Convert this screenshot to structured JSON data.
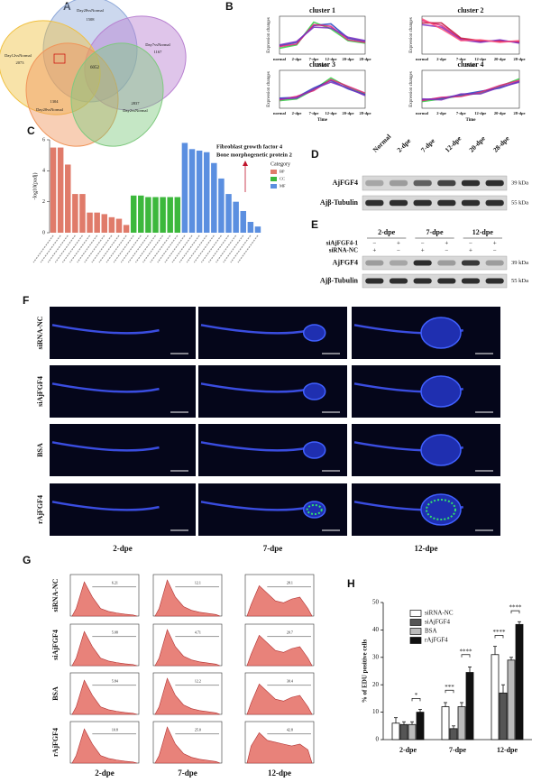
{
  "panel_labels": [
    "A",
    "B",
    "C",
    "D",
    "E",
    "F",
    "G",
    "H"
  ],
  "venn": {
    "sets": [
      {
        "name": "Day28vsNormal",
        "count": 1508
      },
      {
        "name": "Day7vsNormal",
        "count": 1167
      },
      {
        "name": "Day12vsNormal",
        "count": 2073
      },
      {
        "name": "Day20vsNormal",
        "count": 1304
      },
      {
        "name": "Day2vsNormal",
        "count": 2837
      }
    ],
    "center": 6052
  },
  "chart_data": [
    {
      "type": "line",
      "title": "cluster 1",
      "ylabel": "Expression changes",
      "xlabel": "Time",
      "categories": [
        "normal",
        "2-dpe",
        "7-dpe",
        "12-dpe",
        "20-dpe",
        "28-dpe"
      ],
      "ylim": [
        -2,
        2.5
      ],
      "series": [
        {
          "color": "#2ecc40",
          "values": [
            -1.3,
            -0.9,
            1.8,
            1.0,
            -0.4,
            -0.7
          ]
        },
        {
          "color": "#1f3fbf",
          "values": [
            -1.0,
            -0.6,
            1.4,
            1.6,
            -0.1,
            -0.5
          ]
        },
        {
          "color": "#e0217a",
          "values": [
            -1.1,
            -0.8,
            1.5,
            1.3,
            -0.3,
            -0.6
          ]
        },
        {
          "color": "#7b2fbf",
          "values": [
            -0.9,
            -0.5,
            1.2,
            1.1,
            0.0,
            -0.4
          ]
        }
      ]
    },
    {
      "type": "line",
      "title": "cluster 2",
      "ylabel": "Expression changes",
      "xlabel": "Time",
      "categories": [
        "normal",
        "2-dpe",
        "7-dpe",
        "12-dpe",
        "20-dpe",
        "28-dpe"
      ],
      "ylim": [
        -2,
        2.5
      ],
      "series": [
        {
          "color": "#e0217a",
          "values": [
            2.0,
            1.4,
            -0.2,
            -0.5,
            -0.4,
            -0.6
          ]
        },
        {
          "color": "#c0143c",
          "values": [
            1.7,
            1.7,
            -0.1,
            -0.4,
            -0.5,
            -0.5
          ]
        },
        {
          "color": "#7b2fbf",
          "values": [
            1.5,
            1.2,
            -0.3,
            -0.6,
            -0.3,
            -0.7
          ]
        },
        {
          "color": "#ff4f7a",
          "values": [
            2.2,
            1.0,
            -0.4,
            -0.3,
            -0.6,
            -0.4
          ]
        }
      ]
    },
    {
      "type": "line",
      "title": "cluster 3",
      "ylabel": "Expression changes",
      "xlabel": "Time",
      "categories": [
        "normal",
        "2-dpe",
        "7-dpe",
        "12-dpe",
        "20-dpe",
        "28-dpe"
      ],
      "ylim": [
        -2,
        2.5
      ],
      "series": [
        {
          "color": "#2ecc40",
          "values": [
            -1.1,
            -0.9,
            0.2,
            1.6,
            0.5,
            -0.3
          ]
        },
        {
          "color": "#1f3fbf",
          "values": [
            -0.8,
            -0.7,
            0.4,
            1.3,
            0.3,
            -0.4
          ]
        },
        {
          "color": "#e0217a",
          "values": [
            -1.0,
            -0.6,
            0.1,
            1.4,
            0.6,
            -0.2
          ]
        },
        {
          "color": "#7b2fbf",
          "values": [
            -0.9,
            -0.8,
            0.3,
            1.1,
            0.4,
            -0.5
          ]
        }
      ]
    },
    {
      "type": "line",
      "title": "cluster 4",
      "ylabel": "Expression changes",
      "xlabel": "Time",
      "categories": [
        "normal",
        "2-dpe",
        "7-dpe",
        "12-dpe",
        "20-dpe",
        "28-dpe"
      ],
      "ylim": [
        -2,
        2.5
      ],
      "series": [
        {
          "color": "#2ecc40",
          "values": [
            -1.2,
            -0.9,
            -0.5,
            -0.2,
            0.6,
            1.5
          ]
        },
        {
          "color": "#1f3fbf",
          "values": [
            -1.0,
            -0.8,
            -0.4,
            0.0,
            0.4,
            1.2
          ]
        },
        {
          "color": "#e0217a",
          "values": [
            -1.1,
            -0.7,
            -0.6,
            -0.1,
            0.7,
            1.3
          ]
        },
        {
          "color": "#7b2fbf",
          "values": [
            -0.9,
            -1.0,
            -0.3,
            -0.3,
            0.5,
            1.1
          ]
        }
      ]
    },
    {
      "type": "bar",
      "ylabel": "-log10(padj)",
      "ylim": [
        0,
        6
      ],
      "yticks": [
        0,
        2,
        4,
        6
      ],
      "legend_title": "Category",
      "categories": [
        null,
        null,
        null,
        null,
        null,
        null,
        null,
        null,
        null,
        null,
        null,
        null,
        null,
        null,
        null,
        null,
        null,
        null,
        null,
        null,
        null,
        null,
        null,
        null,
        null,
        null,
        null,
        null,
        null
      ],
      "series": [
        {
          "name": "BP",
          "color": "#e07b6a",
          "values": [
            5.5,
            5.5,
            4.4,
            2.5,
            2.5,
            1.3,
            1.3,
            1.2,
            1.0,
            0.9,
            0.5,
            null,
            null,
            null,
            null,
            null,
            null,
            null,
            null,
            null,
            null,
            null,
            null,
            null,
            null,
            null,
            null,
            null,
            null
          ]
        },
        {
          "name": "CC",
          "color": "#3cb83c",
          "values": [
            null,
            null,
            null,
            null,
            null,
            null,
            null,
            null,
            null,
            null,
            null,
            2.4,
            2.4,
            2.3,
            2.3,
            2.3,
            2.3,
            2.3,
            null,
            null,
            null,
            null,
            null,
            null,
            null,
            null,
            null,
            null,
            null
          ]
        },
        {
          "name": "MF",
          "color": "#5b8fe0",
          "values": [
            null,
            null,
            null,
            null,
            null,
            null,
            null,
            null,
            null,
            null,
            null,
            null,
            null,
            null,
            null,
            null,
            null,
            null,
            5.8,
            5.4,
            5.3,
            5.2,
            4.5,
            3.5,
            2.5,
            2.0,
            1.4,
            0.7,
            0.4
          ]
        }
      ],
      "annotations": [
        "Fibroblast growth factor 4",
        "Bone morphogenetic protein 2"
      ]
    },
    {
      "type": "bar",
      "ylabel": "% of EDU positive cells",
      "ylim": [
        0,
        50
      ],
      "yticks": [
        0,
        10,
        20,
        30,
        40,
        50
      ],
      "categories": [
        "2-dpe",
        "7-dpe",
        "12-dpe"
      ],
      "series": [
        {
          "name": "siRNA-NC",
          "color": "#ffffff",
          "values": [
            6,
            12,
            31
          ],
          "errors": [
            2,
            1.5,
            3
          ]
        },
        {
          "name": "siAjFGF4",
          "color": "#555555",
          "values": [
            5.5,
            4,
            17
          ],
          "errors": [
            1,
            1,
            3
          ]
        },
        {
          "name": "BSA",
          "color": "#bbbbbb",
          "values": [
            5.5,
            12,
            29
          ],
          "errors": [
            1,
            1.5,
            1
          ]
        },
        {
          "name": "rAjFGF4",
          "color": "#111111",
          "values": [
            10,
            24.5,
            42
          ],
          "errors": [
            1,
            2,
            1
          ]
        }
      ],
      "significance": [
        "*",
        "***",
        "****",
        "****",
        "****"
      ]
    }
  ],
  "blot_d": {
    "lanes": [
      "Normal",
      "2-dpe",
      "7-dpe",
      "12-dpe",
      "20-dpe",
      "28-dpe"
    ],
    "rows": [
      {
        "name": "AjFGF4",
        "marker": "39 kDa"
      },
      {
        "name": "Ajβ-Tubulin",
        "marker": "55 kDa"
      }
    ]
  },
  "blot_e": {
    "groups": [
      "2-dpe",
      "7-dpe",
      "12-dpe"
    ],
    "treatments": [
      {
        "name": "siAjFGF4-1",
        "signs": [
          "−",
          "+",
          "−",
          "+",
          "−",
          "+"
        ]
      },
      {
        "name": "siRNA-NC",
        "signs": [
          "+",
          "−",
          "+",
          "−",
          "+",
          "−"
        ]
      }
    ],
    "rows": [
      {
        "name": "AjFGF4",
        "marker": "39 kDa"
      },
      {
        "name": "Ajβ-Tubulin",
        "marker": "55 kDa"
      }
    ]
  },
  "imaging": {
    "rows": [
      "siRNA-NC",
      "siAjFGF4",
      "BSA",
      "rAjFGF4"
    ],
    "columns": [
      "2-dpe",
      "7-dpe",
      "12-dpe"
    ]
  },
  "flow": {
    "rows": [
      "siRNA-NC",
      "siAjFGF4",
      "BSA",
      "rAjFGF4"
    ],
    "columns": [
      "2-dpe",
      "7-dpe",
      "12-dpe"
    ],
    "gates": [
      [
        "6.21",
        "12.1",
        "28.1"
      ],
      [
        "5.08",
        "4.71",
        "20.7"
      ],
      [
        "5.84",
        "12.2",
        "30.4"
      ],
      [
        "10.8",
        "25.0",
        "42.8"
      ]
    ]
  }
}
